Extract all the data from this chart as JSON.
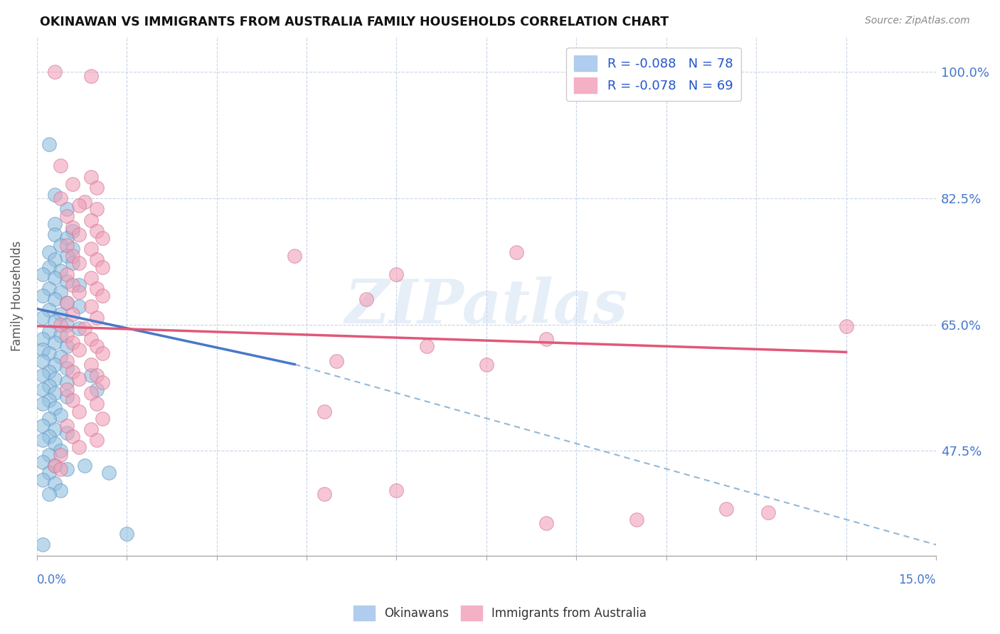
{
  "title": "OKINAWAN VS IMMIGRANTS FROM AUSTRALIA FAMILY HOUSEHOLDS CORRELATION CHART",
  "source": "Source: ZipAtlas.com",
  "ylabel": "Family Households",
  "ytick_labels": [
    "47.5%",
    "65.0%",
    "82.5%",
    "100.0%"
  ],
  "ytick_values": [
    0.475,
    0.65,
    0.825,
    1.0
  ],
  "watermark": "ZIPatlas",
  "xmin": 0.0,
  "xmax": 0.15,
  "ymin": 0.33,
  "ymax": 1.05,
  "blue_scatter_color": "#90c0e0",
  "blue_edge_color": "#6090c0",
  "pink_scatter_color": "#f0a0b8",
  "pink_edge_color": "#d07090",
  "blue_line_color": "#4878c8",
  "pink_line_color": "#e05878",
  "dash_line_color": "#90b8d8",
  "blue_dots": [
    [
      0.002,
      0.9
    ],
    [
      0.003,
      0.83
    ],
    [
      0.005,
      0.81
    ],
    [
      0.003,
      0.79
    ],
    [
      0.006,
      0.78
    ],
    [
      0.003,
      0.775
    ],
    [
      0.005,
      0.77
    ],
    [
      0.004,
      0.76
    ],
    [
      0.006,
      0.755
    ],
    [
      0.002,
      0.75
    ],
    [
      0.005,
      0.745
    ],
    [
      0.003,
      0.74
    ],
    [
      0.006,
      0.735
    ],
    [
      0.002,
      0.73
    ],
    [
      0.004,
      0.725
    ],
    [
      0.001,
      0.72
    ],
    [
      0.003,
      0.715
    ],
    [
      0.005,
      0.71
    ],
    [
      0.007,
      0.705
    ],
    [
      0.002,
      0.7
    ],
    [
      0.004,
      0.695
    ],
    [
      0.001,
      0.69
    ],
    [
      0.003,
      0.685
    ],
    [
      0.005,
      0.68
    ],
    [
      0.007,
      0.675
    ],
    [
      0.002,
      0.67
    ],
    [
      0.004,
      0.665
    ],
    [
      0.001,
      0.66
    ],
    [
      0.003,
      0.655
    ],
    [
      0.005,
      0.65
    ],
    [
      0.007,
      0.645
    ],
    [
      0.002,
      0.64
    ],
    [
      0.004,
      0.635
    ],
    [
      0.001,
      0.63
    ],
    [
      0.003,
      0.625
    ],
    [
      0.005,
      0.62
    ],
    [
      0.001,
      0.615
    ],
    [
      0.002,
      0.61
    ],
    [
      0.004,
      0.605
    ],
    [
      0.001,
      0.6
    ],
    [
      0.003,
      0.595
    ],
    [
      0.005,
      0.59
    ],
    [
      0.002,
      0.585
    ],
    [
      0.001,
      0.58
    ],
    [
      0.003,
      0.575
    ],
    [
      0.005,
      0.57
    ],
    [
      0.002,
      0.565
    ],
    [
      0.001,
      0.56
    ],
    [
      0.003,
      0.555
    ],
    [
      0.005,
      0.55
    ],
    [
      0.002,
      0.545
    ],
    [
      0.001,
      0.54
    ],
    [
      0.003,
      0.535
    ],
    [
      0.004,
      0.525
    ],
    [
      0.002,
      0.52
    ],
    [
      0.001,
      0.51
    ],
    [
      0.003,
      0.505
    ],
    [
      0.005,
      0.5
    ],
    [
      0.002,
      0.495
    ],
    [
      0.001,
      0.49
    ],
    [
      0.003,
      0.485
    ],
    [
      0.004,
      0.475
    ],
    [
      0.002,
      0.47
    ],
    [
      0.001,
      0.46
    ],
    [
      0.003,
      0.455
    ],
    [
      0.005,
      0.45
    ],
    [
      0.002,
      0.445
    ],
    [
      0.001,
      0.435
    ],
    [
      0.003,
      0.43
    ],
    [
      0.004,
      0.42
    ],
    [
      0.002,
      0.415
    ],
    [
      0.008,
      0.455
    ],
    [
      0.012,
      0.445
    ],
    [
      0.01,
      0.56
    ],
    [
      0.009,
      0.58
    ],
    [
      0.015,
      0.36
    ],
    [
      0.001,
      0.345
    ]
  ],
  "pink_dots": [
    [
      0.003,
      1.0
    ],
    [
      0.009,
      0.995
    ],
    [
      0.004,
      0.87
    ],
    [
      0.009,
      0.855
    ],
    [
      0.006,
      0.845
    ],
    [
      0.01,
      0.84
    ],
    [
      0.004,
      0.825
    ],
    [
      0.008,
      0.82
    ],
    [
      0.007,
      0.815
    ],
    [
      0.01,
      0.81
    ],
    [
      0.005,
      0.8
    ],
    [
      0.009,
      0.795
    ],
    [
      0.006,
      0.785
    ],
    [
      0.01,
      0.78
    ],
    [
      0.007,
      0.775
    ],
    [
      0.011,
      0.77
    ],
    [
      0.005,
      0.76
    ],
    [
      0.009,
      0.755
    ],
    [
      0.006,
      0.745
    ],
    [
      0.01,
      0.74
    ],
    [
      0.007,
      0.735
    ],
    [
      0.011,
      0.73
    ],
    [
      0.005,
      0.72
    ],
    [
      0.009,
      0.715
    ],
    [
      0.006,
      0.705
    ],
    [
      0.01,
      0.7
    ],
    [
      0.007,
      0.695
    ],
    [
      0.011,
      0.69
    ],
    [
      0.005,
      0.68
    ],
    [
      0.009,
      0.675
    ],
    [
      0.006,
      0.665
    ],
    [
      0.01,
      0.66
    ],
    [
      0.004,
      0.65
    ],
    [
      0.008,
      0.645
    ],
    [
      0.005,
      0.635
    ],
    [
      0.009,
      0.63
    ],
    [
      0.006,
      0.625
    ],
    [
      0.01,
      0.62
    ],
    [
      0.007,
      0.615
    ],
    [
      0.011,
      0.61
    ],
    [
      0.005,
      0.6
    ],
    [
      0.009,
      0.595
    ],
    [
      0.006,
      0.585
    ],
    [
      0.01,
      0.58
    ],
    [
      0.007,
      0.575
    ],
    [
      0.011,
      0.57
    ],
    [
      0.005,
      0.56
    ],
    [
      0.009,
      0.555
    ],
    [
      0.006,
      0.545
    ],
    [
      0.01,
      0.54
    ],
    [
      0.007,
      0.53
    ],
    [
      0.011,
      0.52
    ],
    [
      0.005,
      0.51
    ],
    [
      0.009,
      0.505
    ],
    [
      0.006,
      0.495
    ],
    [
      0.01,
      0.49
    ],
    [
      0.007,
      0.48
    ],
    [
      0.004,
      0.47
    ],
    [
      0.003,
      0.455
    ],
    [
      0.004,
      0.45
    ],
    [
      0.043,
      0.745
    ],
    [
      0.06,
      0.72
    ],
    [
      0.055,
      0.685
    ],
    [
      0.08,
      0.75
    ],
    [
      0.065,
      0.62
    ],
    [
      0.085,
      0.63
    ],
    [
      0.05,
      0.6
    ],
    [
      0.075,
      0.595
    ],
    [
      0.135,
      0.648
    ],
    [
      0.048,
      0.415
    ],
    [
      0.06,
      0.42
    ],
    [
      0.115,
      0.395
    ],
    [
      0.122,
      0.39
    ],
    [
      0.1,
      0.38
    ],
    [
      0.085,
      0.375
    ],
    [
      0.048,
      0.53
    ]
  ],
  "blue_line_x": [
    0.0,
    0.043
  ],
  "blue_line_y": [
    0.672,
    0.595
  ],
  "pink_line_x": [
    0.0,
    0.135
  ],
  "pink_line_y": [
    0.648,
    0.612
  ],
  "dash_line_x": [
    0.043,
    0.15
  ],
  "dash_line_y": [
    0.595,
    0.345
  ]
}
